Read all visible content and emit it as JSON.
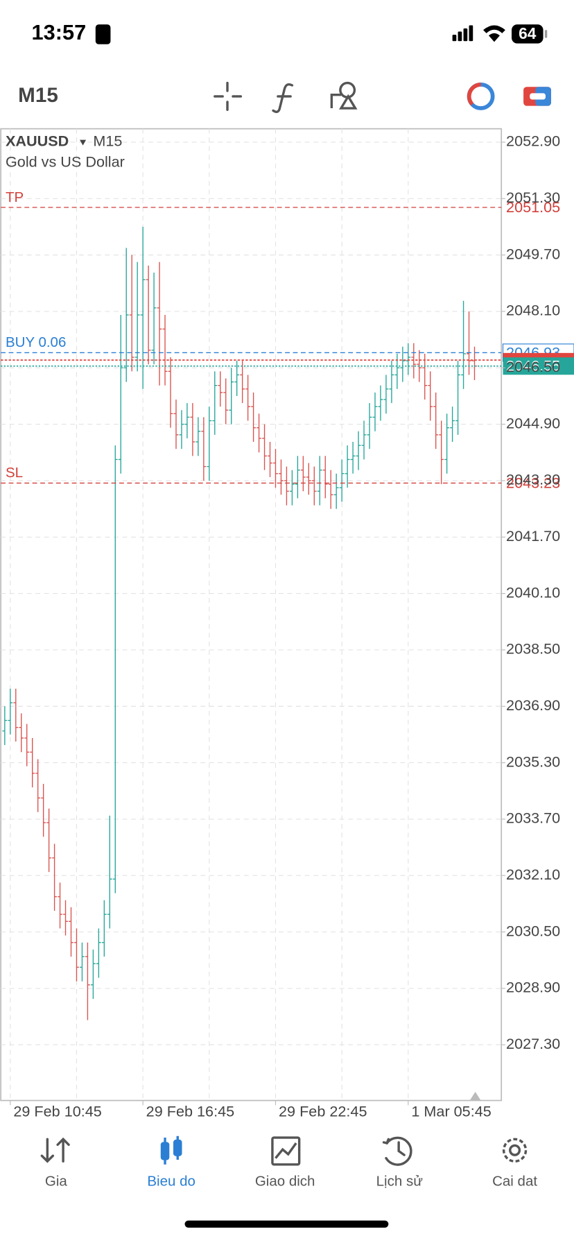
{
  "status_bar": {
    "time": "13:57",
    "battery": "64"
  },
  "toolbar": {
    "timeframe": "M15"
  },
  "chart_data": {
    "type": "ohlc",
    "title": "XAUUSD",
    "timeframe": "M15",
    "subtitle": "Gold vs US Dollar",
    "up_color": "#26a69a",
    "down_color": "#d9534f",
    "grid": true,
    "open": [
      2036.2,
      2036.5,
      2037.0,
      2036.3,
      2036.0,
      2035.6,
      2035.0,
      2034.3,
      2033.6,
      2032.6,
      2031.5,
      2031.0,
      2030.8,
      2030.2,
      2029.5,
      2029.8,
      2029.0,
      2029.6,
      2030.2,
      2031.0,
      2032.0,
      2043.9,
      2046.5,
      2048.0,
      2046.8,
      2048.0,
      2049.0,
      2047.0,
      2048.2,
      2047.6,
      2046.4,
      2045.2,
      2044.6,
      2044.9,
      2045.1,
      2044.4,
      2044.7,
      2043.7,
      2045.0,
      2046.0,
      2045.8,
      2045.3,
      2046.1,
      2046.3,
      2045.9,
      2045.4,
      2044.8,
      2044.5,
      2044.0,
      2043.8,
      2043.5,
      2043.3,
      2043.0,
      2043.2,
      2043.6,
      2043.4,
      2043.3,
      2043.0,
      2043.6,
      2043.2,
      2042.9,
      2043.1,
      2043.5,
      2043.9,
      2044.0,
      2044.3,
      2044.6,
      2045.1,
      2045.4,
      2045.6,
      2045.9,
      2046.3,
      2046.5,
      2046.7,
      2046.8,
      2046.6,
      2046.5,
      2046.0,
      2045.4,
      2044.6,
      2043.9,
      2044.8,
      2045.0,
      2046.3,
      2046.9,
      2046.7
    ],
    "high": [
      2036.9,
      2037.4,
      2037.4,
      2036.7,
      2036.4,
      2036.0,
      2035.4,
      2034.7,
      2034.0,
      2033.0,
      2031.9,
      2031.4,
      2031.2,
      2030.6,
      2030.2,
      2030.2,
      2030.0,
      2030.6,
      2031.4,
      2033.8,
      2044.3,
      2048.0,
      2049.9,
      2049.7,
      2049.5,
      2050.5,
      2049.4,
      2049.2,
      2049.5,
      2048.0,
      2046.8,
      2045.6,
      2045.3,
      2045.5,
      2045.5,
      2045.1,
      2045.1,
      2045.4,
      2046.4,
      2046.4,
      2046.2,
      2046.5,
      2046.7,
      2046.7,
      2046.3,
      2045.8,
      2045.2,
      2044.9,
      2044.4,
      2044.2,
      2043.9,
      2043.7,
      2043.6,
      2044.0,
      2044.0,
      2043.8,
      2043.7,
      2044.0,
      2044.0,
      2043.6,
      2043.5,
      2043.9,
      2044.3,
      2044.4,
      2044.7,
      2045.0,
      2045.5,
      2045.8,
      2046.0,
      2046.3,
      2046.7,
      2046.9,
      2047.1,
      2047.2,
      2047.2,
      2047.0,
      2046.9,
      2046.4,
      2045.8,
      2045.0,
      2045.2,
      2045.4,
      2046.7,
      2048.4,
      2048.1,
      2047.1
    ],
    "low": [
      2035.8,
      2036.1,
      2035.9,
      2035.6,
      2035.2,
      2034.6,
      2033.9,
      2033.2,
      2032.2,
      2031.1,
      2030.6,
      2030.4,
      2029.8,
      2029.1,
      2029.1,
      2028.0,
      2028.6,
      2029.2,
      2029.8,
      2030.6,
      2031.6,
      2043.5,
      2046.1,
      2046.4,
      2046.4,
      2045.9,
      2046.6,
      2046.6,
      2046.0,
      2046.0,
      2044.8,
      2044.2,
      2044.2,
      2044.5,
      2044.0,
      2044.0,
      2043.3,
      2043.3,
      2044.6,
      2045.4,
      2044.9,
      2044.9,
      2045.7,
      2045.5,
      2045.0,
      2044.4,
      2044.1,
      2043.6,
      2043.4,
      2043.1,
      2042.9,
      2042.6,
      2042.6,
      2042.8,
      2043.0,
      2042.9,
      2042.6,
      2042.6,
      2042.8,
      2042.5,
      2042.5,
      2042.7,
      2043.1,
      2043.5,
      2043.6,
      2043.9,
      2044.2,
      2044.7,
      2045.0,
      2045.2,
      2045.5,
      2045.9,
      2046.1,
      2046.3,
      2046.2,
      2046.1,
      2045.6,
      2045.0,
      2044.2,
      2043.2,
      2043.5,
      2044.4,
      2044.6,
      2045.9,
      2046.3,
      2046.15
    ],
    "close": [
      2036.5,
      2037.0,
      2036.3,
      2036.0,
      2035.6,
      2035.0,
      2034.3,
      2033.6,
      2032.6,
      2031.5,
      2031.0,
      2030.8,
      2030.2,
      2029.5,
      2029.8,
      2029.0,
      2029.6,
      2030.2,
      2031.0,
      2032.0,
      2043.9,
      2046.5,
      2048.0,
      2046.8,
      2048.0,
      2049.0,
      2047.0,
      2048.2,
      2047.6,
      2046.4,
      2045.2,
      2044.6,
      2044.9,
      2045.1,
      2044.4,
      2044.7,
      2043.7,
      2045.0,
      2046.0,
      2045.8,
      2045.3,
      2046.1,
      2046.3,
      2045.9,
      2045.4,
      2044.8,
      2044.5,
      2044.0,
      2043.8,
      2043.5,
      2043.3,
      2043.0,
      2043.2,
      2043.6,
      2043.4,
      2043.3,
      2043.0,
      2043.6,
      2043.2,
      2042.9,
      2043.1,
      2043.5,
      2043.9,
      2044.0,
      2044.3,
      2044.6,
      2045.1,
      2045.4,
      2045.6,
      2045.9,
      2046.3,
      2046.5,
      2046.7,
      2046.8,
      2046.6,
      2046.5,
      2046.0,
      2045.4,
      2044.6,
      2043.9,
      2044.8,
      2045.0,
      2046.3,
      2046.9,
      2046.7,
      2046.55
    ],
    "ylim": [
      2025.72,
      2053.28
    ],
    "yticks": [
      {
        "value": 2052.9,
        "label": "2052.90"
      },
      {
        "value": 2051.3,
        "label": "2051.30"
      },
      {
        "value": 2049.7,
        "label": "2049.70"
      },
      {
        "value": 2048.1,
        "label": "2048.10"
      },
      {
        "value": 2046.5,
        "label": "2046.50"
      },
      {
        "value": 2044.9,
        "label": "2044.90"
      },
      {
        "value": 2043.3,
        "label": "2043.30"
      },
      {
        "value": 2041.7,
        "label": "2041.70"
      },
      {
        "value": 2040.1,
        "label": "2040.10"
      },
      {
        "value": 2038.5,
        "label": "2038.50"
      },
      {
        "value": 2036.9,
        "label": "2036.90"
      },
      {
        "value": 2035.3,
        "label": "2035.30"
      },
      {
        "value": 2033.7,
        "label": "2033.70"
      },
      {
        "value": 2032.1,
        "label": "2032.10"
      },
      {
        "value": 2030.5,
        "label": "2030.50"
      },
      {
        "value": 2028.9,
        "label": "2028.90"
      },
      {
        "value": 2027.3,
        "label": "2027.30"
      }
    ],
    "xticks": [
      {
        "value": 1,
        "label": "29 Feb 10:45"
      },
      {
        "value": 25,
        "label": "29 Feb 16:45"
      },
      {
        "value": 49,
        "label": "29 Feb 22:45"
      },
      {
        "value": 73,
        "label": "1 Mar 05:45"
      }
    ],
    "levels": [
      {
        "name": "TP",
        "value": 2051.05,
        "color": "#d23f3a"
      },
      {
        "name": "BUY 0.06",
        "value": 2046.93,
        "color": "#2a7fd4"
      },
      {
        "name": "SL",
        "value": 2043.23,
        "color": "#d23f3a"
      }
    ],
    "ask_line": {
      "value": 2046.72,
      "color": "#e0463f"
    },
    "bid_line": {
      "value": 2046.55,
      "color": "#26a69a"
    }
  },
  "tab_bar": {
    "active": 1,
    "tabs": [
      {
        "label": "Gia"
      },
      {
        "label": "Bieu do"
      },
      {
        "label": "Giao dich"
      },
      {
        "label": "Lịch sử"
      },
      {
        "label": "Cai dat"
      }
    ]
  }
}
